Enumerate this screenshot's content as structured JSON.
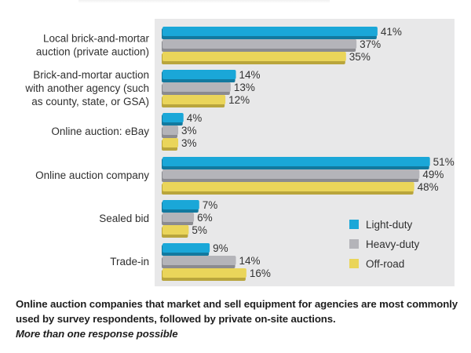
{
  "chart_data": {
    "type": "bar",
    "orientation": "horizontal",
    "title": "",
    "xlabel": "",
    "ylabel": "",
    "xlim": [
      0,
      55
    ],
    "grid": false,
    "value_suffix": "%",
    "categories": [
      [
        "Local brick-and-mortar",
        "auction (private auction)"
      ],
      [
        "Brick-and-mortar auction",
        "with another agency (such",
        "as county, state, or GSA)"
      ],
      [
        "Online auction: eBay"
      ],
      [
        "Online auction company"
      ],
      [
        "Sealed bid"
      ],
      [
        "Trade-in"
      ]
    ],
    "series": [
      {
        "name": "Light-duty",
        "color": "#1aa7d8",
        "edge": "#12799f",
        "values": [
          41,
          14,
          4,
          51,
          7,
          9
        ]
      },
      {
        "name": "Heavy-duty",
        "color": "#b4b4b9",
        "edge": "#8b8b90",
        "values": [
          37,
          13,
          3,
          49,
          6,
          14
        ]
      },
      {
        "name": "Off-road",
        "color": "#ead55a",
        "edge": "#b9a53c",
        "values": [
          35,
          12,
          3,
          48,
          5,
          16
        ]
      }
    ],
    "legend": {
      "position": "bottom-right"
    },
    "background": "#e8e8e9"
  },
  "caption": {
    "text": "Online auction companies that market and sell equipment for agencies are most commonly used by survey respondents, followed by private on-site auctions.",
    "note": "More than one response possible"
  }
}
